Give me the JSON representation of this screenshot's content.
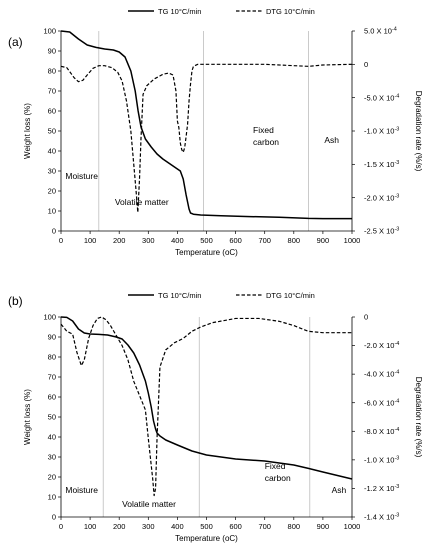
{
  "chart_data": [
    {
      "panel": "(a)",
      "type": "line",
      "legend": {
        "placement": "top",
        "entries": [
          "TG 10°C/min",
          "DTG 10°C/min"
        ]
      },
      "xlabel": "Temperature (",
      "xlabel_unit": "oC",
      "xlabel_close": ")",
      "ylabel": "Weight loss (%)",
      "y2label": "Degradation rate (%/s)",
      "xlim": [
        0,
        1000
      ],
      "xticks": [
        "0",
        "100",
        "200",
        "300",
        "400",
        "500",
        "600",
        "700",
        "800",
        "900",
        "1000"
      ],
      "ylim": [
        0,
        100
      ],
      "yticks": [
        "0",
        "10",
        "20",
        "30",
        "40",
        "50",
        "60",
        "70",
        "80",
        "90",
        "100"
      ],
      "y2lim": [
        -0.0025,
        0.0005
      ],
      "y2ticks": [
        {
          "v": 0.0005,
          "mant": "5.0 X 10",
          "exp": "-4"
        },
        {
          "v": 0,
          "mant": "0",
          "exp": ""
        },
        {
          "v": -0.0005,
          "mant": "-5.0 X 10",
          "exp": "-4"
        },
        {
          "v": -0.001,
          "mant": "-1.0 X 10",
          "exp": "-3"
        },
        {
          "v": -0.0015,
          "mant": "-1.5 X 10",
          "exp": "-3"
        },
        {
          "v": -0.002,
          "mant": "-2.0 X 10",
          "exp": "-3"
        },
        {
          "v": -0.0025,
          "mant": "-2.5 X 10",
          "exp": "-3"
        }
      ],
      "dividers": [
        130,
        490,
        850
      ],
      "annotations": [
        {
          "text": "Moisture",
          "x": 15,
          "y": 26
        },
        {
          "text": "Volatile matter",
          "x": 185,
          "y": 13
        },
        {
          "text": "Fixed",
          "x": 660,
          "y": 49
        },
        {
          "text": "carbon",
          "x": 660,
          "y": 43
        },
        {
          "text": "Ash",
          "x": 905,
          "y": 44
        }
      ],
      "series": [
        {
          "name": "TG 10°C/min",
          "style": "solid",
          "axis": "left",
          "x": [
            0,
            30,
            60,
            90,
            120,
            150,
            180,
            200,
            220,
            240,
            255,
            265,
            275,
            290,
            310,
            330,
            350,
            370,
            390,
            410,
            420,
            430,
            440,
            445,
            455,
            480,
            550,
            650,
            750,
            850,
            900,
            1000
          ],
          "y": [
            100,
            99.5,
            96,
            93,
            91.8,
            91,
            90.5,
            89.5,
            87,
            80,
            70,
            60,
            52,
            46,
            42,
            38.5,
            36,
            34,
            32,
            30,
            26,
            18,
            11,
            9,
            8.4,
            8,
            7.6,
            7.2,
            6.9,
            6.3,
            6.2,
            6.2
          ]
        },
        {
          "name": "DTG 10°C/min",
          "style": "dashed",
          "axis": "right",
          "x": [
            0,
            20,
            45,
            60,
            75,
            90,
            110,
            130,
            150,
            175,
            195,
            210,
            225,
            240,
            250,
            258,
            264,
            270,
            275,
            282,
            295,
            320,
            350,
            370,
            385,
            395,
            400,
            405,
            410,
            415,
            420,
            425,
            430,
            435,
            440,
            445,
            450,
            455,
            470,
            500,
            600,
            700,
            800,
            850,
            900,
            1000
          ],
          "y": [
            -3e-05,
            -5e-05,
            -0.0002,
            -0.00026,
            -0.00024,
            -0.00016,
            -6e-05,
            -2e-05,
            -2e-05,
            -5e-05,
            -0.00012,
            -0.00025,
            -0.00055,
            -0.001,
            -0.0015,
            -0.0019,
            -0.00222,
            -0.0017,
            -0.0011,
            -0.00045,
            -0.00032,
            -0.00022,
            -0.00015,
            -0.00013,
            -0.00016,
            -0.0004,
            -0.00085,
            -0.00095,
            -0.00118,
            -0.00128,
            -0.00132,
            -0.00125,
            -0.00108,
            -0.0009,
            -0.00055,
            -0.0003,
            -0.0001,
            -3e-05,
            0,
            0,
            0,
            0,
            -2e-05,
            -3e-05,
            -1e-05,
            0
          ]
        }
      ]
    },
    {
      "panel": "(b)",
      "type": "line",
      "legend": {
        "placement": "top",
        "entries": [
          "TG 10°C/min",
          "DTG 10°C/min"
        ]
      },
      "xlabel": "Temperature (",
      "xlabel_unit": "oC",
      "xlabel_close": ")",
      "ylabel": "Weight loss (%)",
      "y2label": "Degradation rate (%/s)",
      "xlim": [
        0,
        1000
      ],
      "xticks": [
        "0",
        "100",
        "200",
        "300",
        "400",
        "500",
        "600",
        "700",
        "800",
        "900",
        "1000"
      ],
      "ylim": [
        0,
        100
      ],
      "yticks": [
        "0",
        "10",
        "20",
        "30",
        "40",
        "50",
        "60",
        "70",
        "80",
        "90",
        "100"
      ],
      "y2lim": [
        -0.0014,
        0
      ],
      "y2ticks": [
        {
          "v": 0,
          "mant": "0",
          "exp": ""
        },
        {
          "v": -0.0002,
          "mant": "-2.0 X 10",
          "exp": "-4"
        },
        {
          "v": -0.0004,
          "mant": "-4.0 X 10",
          "exp": "-4"
        },
        {
          "v": -0.0006,
          "mant": "-6.0 X 10",
          "exp": "-4"
        },
        {
          "v": -0.0008,
          "mant": "-8.0 X 10",
          "exp": "-4"
        },
        {
          "v": -0.001,
          "mant": "-1.0 X 10",
          "exp": "-3"
        },
        {
          "v": -0.0012,
          "mant": "-1.2 X 10",
          "exp": "-3"
        },
        {
          "v": -0.0014,
          "mant": "-1.4 X 10",
          "exp": "-3"
        }
      ],
      "dividers": [
        145,
        475,
        855
      ],
      "annotations": [
        {
          "text": "Moisture",
          "x": 15,
          "y": 12
        },
        {
          "text": "Volatile matter",
          "x": 210,
          "y": 5
        },
        {
          "text": "Fixed",
          "x": 700,
          "y": 24
        },
        {
          "text": "carbon",
          "x": 700,
          "y": 18
        },
        {
          "text": "Ash",
          "x": 930,
          "y": 12
        }
      ],
      "series": [
        {
          "name": "TG 10°C/min",
          "style": "solid",
          "axis": "left",
          "x": [
            0,
            20,
            40,
            60,
            80,
            100,
            130,
            160,
            190,
            210,
            230,
            250,
            270,
            290,
            300,
            310,
            318,
            325,
            330,
            340,
            360,
            400,
            450,
            500,
            550,
            600,
            700,
            800,
            850,
            900,
            1000
          ],
          "y": [
            100,
            99.8,
            98,
            94,
            92,
            91.5,
            91.3,
            91,
            90,
            89,
            86,
            82,
            76,
            68,
            62,
            55,
            48,
            44,
            42,
            40.5,
            38.5,
            36,
            33,
            31,
            30,
            29,
            28,
            26,
            24.3,
            22.5,
            19
          ]
        },
        {
          "name": "DTG 10°C/min",
          "style": "dashed",
          "axis": "right",
          "x": [
            0,
            20,
            40,
            55,
            70,
            80,
            95,
            110,
            125,
            140,
            155,
            170,
            190,
            210,
            230,
            250,
            270,
            290,
            300,
            308,
            315,
            320,
            325,
            330,
            340,
            360,
            390,
            420,
            450,
            480,
            520,
            600,
            680,
            750,
            800,
            850,
            900,
            1000
          ],
          "y": [
            -5e-05,
            -0.0001,
            -0.00012,
            -0.00025,
            -0.00034,
            -0.0003,
            -0.00015,
            -6e-05,
            -1e-05,
            0,
            -2e-05,
            -6e-05,
            -0.00013,
            -0.0002,
            -0.0003,
            -0.00045,
            -0.00055,
            -0.00065,
            -0.00085,
            -0.001,
            -0.00113,
            -0.00125,
            -0.0012,
            -0.00085,
            -0.00035,
            -0.00023,
            -0.00018,
            -0.00015,
            -0.0001,
            -7e-05,
            -4e-05,
            -1e-05,
            -1e-05,
            -3e-05,
            -6e-05,
            -0.0001,
            -0.00011,
            -0.00011
          ]
        }
      ]
    }
  ]
}
